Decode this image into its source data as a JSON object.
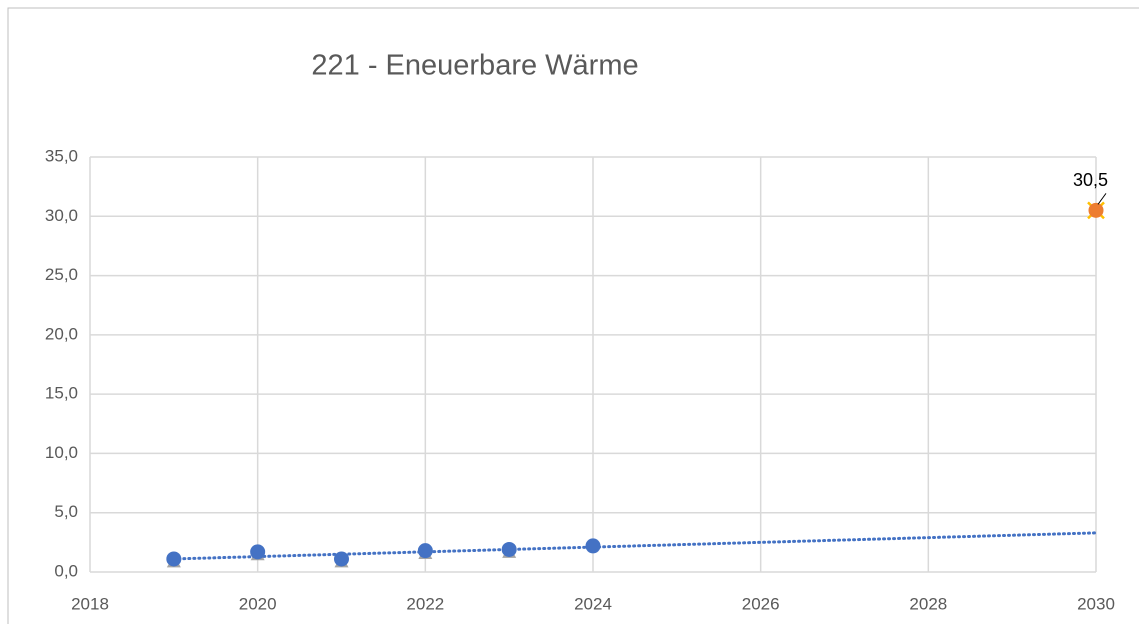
{
  "chart_data": {
    "type": "scatter",
    "title": "221 - Eneuerbare Wärme",
    "xlim": [
      2018,
      2030
    ],
    "xticks": [
      2018,
      2020,
      2022,
      2024,
      2026,
      2028,
      2030
    ],
    "ylim": [
      0,
      35
    ],
    "yticks": [
      {
        "value": 0,
        "label": "0,0"
      },
      {
        "value": 5,
        "label": "5,0"
      },
      {
        "value": 10,
        "label": "10,0"
      },
      {
        "value": 15,
        "label": "15,0"
      },
      {
        "value": 20,
        "label": "20,0"
      },
      {
        "value": 25,
        "label": "25,0"
      },
      {
        "value": 30,
        "label": "30,0"
      },
      {
        "value": 35,
        "label": "35,0"
      }
    ],
    "grid": true,
    "series": [
      {
        "color": "#a5a5a5",
        "marker": "triangle",
        "x": [
          2019,
          2020,
          2021,
          2022,
          2023
        ],
        "values": [
          0.9,
          1.5,
          0.9,
          1.6,
          1.7
        ]
      },
      {
        "color": "#4472c4",
        "marker": "circle",
        "x": [
          2019,
          2020,
          2021,
          2022,
          2023,
          2024
        ],
        "values": [
          1.1,
          1.7,
          1.1,
          1.8,
          1.9,
          2.2
        ]
      },
      {
        "color": "#ffc000",
        "marker": "x",
        "x": [
          2030
        ],
        "values": [
          30.5
        ]
      },
      {
        "color": "#ed7d31",
        "marker": "circle",
        "x": [
          2030
        ],
        "values": [
          30.5
        ],
        "value_labels": [
          "30,5"
        ]
      },
      {
        "color": "#4472c4",
        "marker": "none",
        "line": "dotted",
        "x": [
          2019,
          2030
        ],
        "values": [
          1.1,
          3.3
        ]
      }
    ]
  }
}
